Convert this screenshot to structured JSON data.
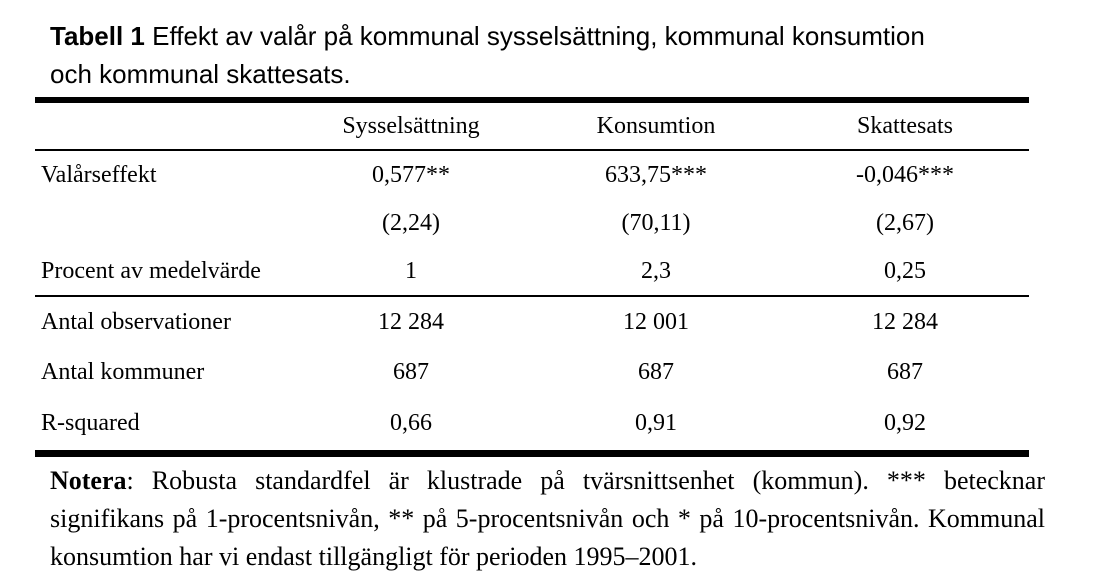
{
  "title": {
    "prefix": "Tabell 1",
    "line1": "Effekt av valår på kommunal sysselsättning, kommunal konsumtion",
    "line2": "och kommunal skattesats."
  },
  "table": {
    "columns": [
      "Sysselsättning",
      "Konsumtion",
      "Skattesats"
    ],
    "rows": [
      {
        "label": "Valårseffekt",
        "values": [
          "0,577**",
          "633,75***",
          "-0,046***"
        ]
      },
      {
        "label": "",
        "values": [
          "(2,24)",
          "(70,11)",
          "(2,67)"
        ]
      },
      {
        "label": "Procent av medelvärde",
        "values": [
          "1",
          "2,3",
          "0,25"
        ]
      },
      {
        "label": "Antal observationer",
        "values": [
          "12 284",
          "12 001",
          "12 284"
        ]
      },
      {
        "label": "Antal kommuner",
        "values": [
          "687",
          "687",
          "687"
        ]
      },
      {
        "label": "R-squared",
        "values": [
          "0,66",
          "0,91",
          "0,92"
        ]
      }
    ]
  },
  "note": {
    "label": "Notera",
    "text": ": Robusta standardfel är klustrade på tvärsnittsenhet (kommun). *** betecknar signifikans på 1-procentsnivån, ** på 5-procentsnivån och * på 10-procentsnivån. Kommunal konsumtion har vi endast tillgängligt för perioden 1995–2001."
  },
  "colors": {
    "text": "#000000",
    "background": "#ffffff",
    "rule": "#000000"
  }
}
